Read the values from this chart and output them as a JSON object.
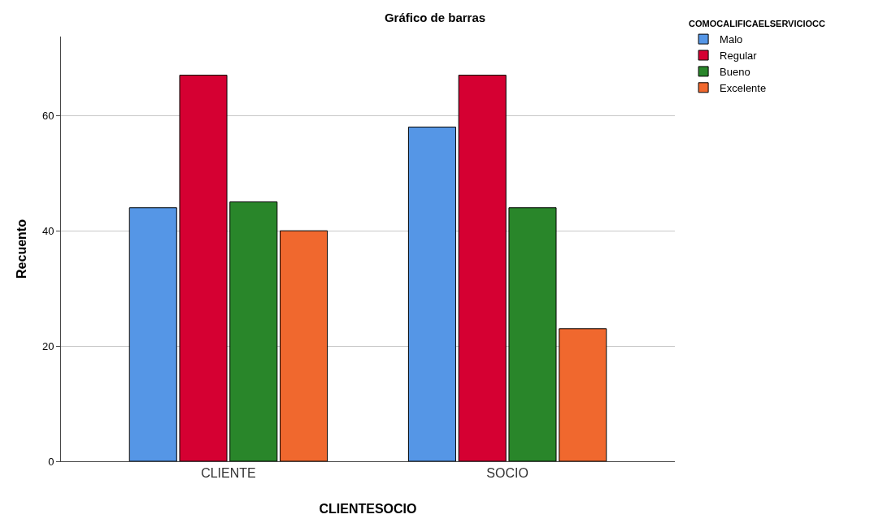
{
  "chart_data": {
    "type": "bar",
    "title": "Gráfico de barras",
    "xlabel": "CLIENTESOCIO",
    "ylabel": "Recuento",
    "legend_title": "COMOCALIFICAELSERVICIOCC",
    "categories": [
      "CLIENTE",
      "SOCIO"
    ],
    "series": [
      {
        "name": "Malo",
        "color": "#5596e6",
        "values": [
          44,
          58
        ]
      },
      {
        "name": "Regular",
        "color": "#d50032",
        "values": [
          67,
          67
        ]
      },
      {
        "name": "Bueno",
        "color": "#29862a",
        "values": [
          45,
          44
        ]
      },
      {
        "name": "Excelente",
        "color": "#f0682e",
        "values": [
          40,
          23
        ]
      }
    ],
    "ylim": [
      0,
      73.7
    ],
    "yticks": [
      0,
      20,
      40,
      60
    ],
    "grid": "y",
    "legend": "top right"
  }
}
